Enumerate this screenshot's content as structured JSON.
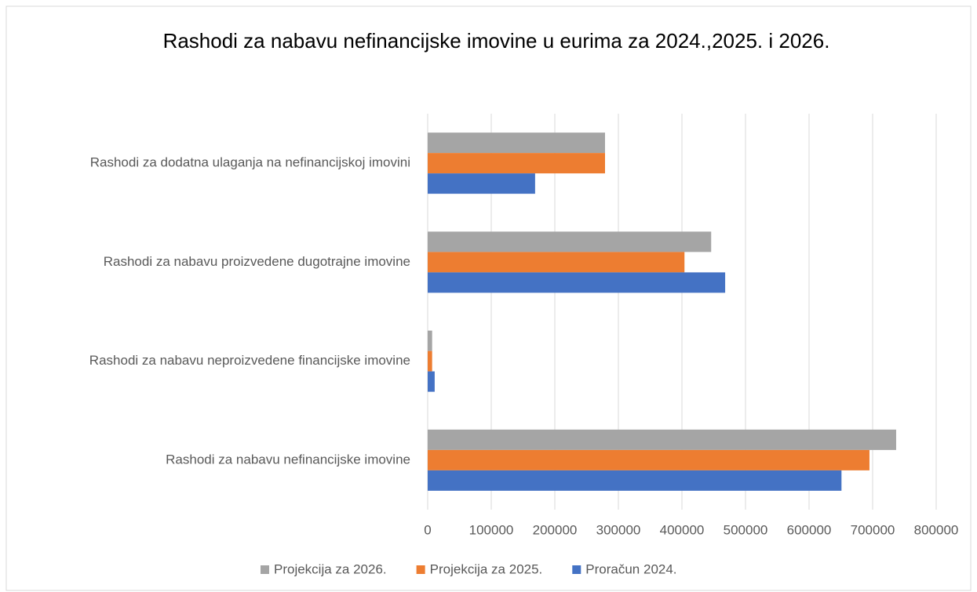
{
  "chart_data": {
    "type": "hbar",
    "title": "Rashodi za nabavu nefinancijske imovine u eurima za 2024.,2025. i 2026.",
    "categories": [
      "Rashodi za dodatna ulaganja na nefinancijskoj imovini",
      "Rashodi za nabavu proizvedene dugotrajne imovine",
      "Rashodi za nabavu neproizvedene financijske imovine",
      "Rashodi za nabavu nefinancijske imovine"
    ],
    "series": [
      {
        "name": "Projekcija za 2026.",
        "color": "#a5a5a5",
        "values": [
          279000,
          446000,
          7000,
          737000
        ]
      },
      {
        "name": "Projekcija za 2025.",
        "color": "#ed7d31",
        "values": [
          279000,
          404000,
          7000,
          695000
        ]
      },
      {
        "name": "Proračun 2024.",
        "color": "#4472c4",
        "values": [
          169000,
          468000,
          11000,
          651000
        ]
      }
    ],
    "xlim": [
      0,
      800000
    ],
    "xticks": [
      0,
      100000,
      200000,
      300000,
      400000,
      500000,
      600000,
      700000,
      800000
    ],
    "grid": true,
    "legend": "bottom"
  }
}
